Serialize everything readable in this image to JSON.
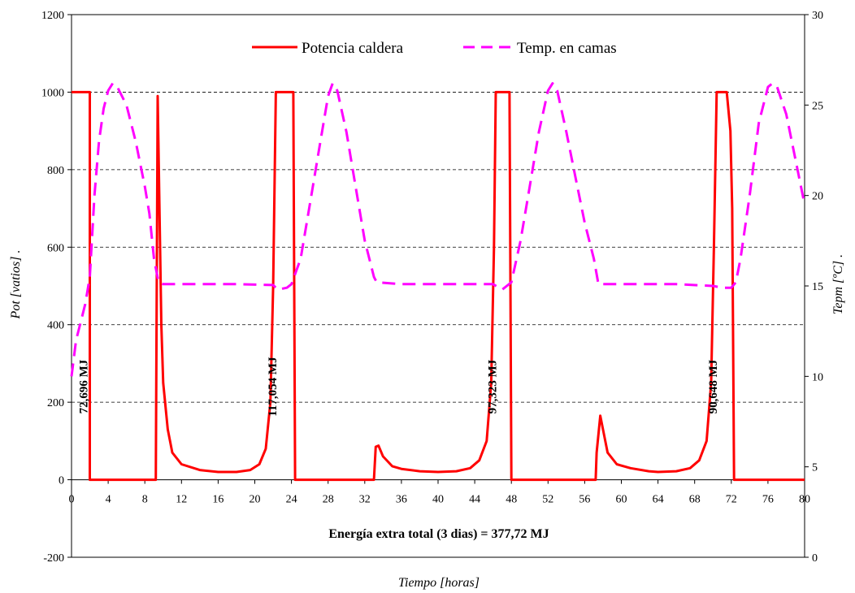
{
  "chart_data": {
    "type": "line",
    "xlabel": "Tiempo [horas]",
    "ylabel": "Pot [vatios]  .",
    "y2label": "Tepm [ºC]  .",
    "xlim": [
      0,
      80
    ],
    "ylim": [
      -200,
      1200
    ],
    "y2lim": [
      0,
      30
    ],
    "x_ticks": [
      0,
      4,
      8,
      12,
      16,
      20,
      24,
      28,
      32,
      36,
      40,
      44,
      48,
      52,
      56,
      60,
      64,
      68,
      72,
      76,
      80
    ],
    "y_ticks": [
      -200,
      0,
      200,
      400,
      600,
      800,
      1000,
      1200
    ],
    "y2_ticks": [
      0,
      5,
      10,
      15,
      20,
      25,
      30
    ],
    "grid": "horizontal dashed at 200, 400, 600, 800, 1000",
    "legend_position": "top-center",
    "series": [
      {
        "name": "Potencia caldera",
        "axis": "left",
        "color": "#ff0000",
        "style": "solid",
        "points": [
          [
            0,
            1000
          ],
          [
            2,
            1000
          ],
          [
            2,
            0
          ],
          [
            9.2,
            0
          ],
          [
            9.4,
            990
          ],
          [
            9.6,
            700
          ],
          [
            9.8,
            400
          ],
          [
            10,
            250
          ],
          [
            10.5,
            130
          ],
          [
            11,
            70
          ],
          [
            12,
            40
          ],
          [
            14,
            25
          ],
          [
            16,
            20
          ],
          [
            18,
            20
          ],
          [
            19.5,
            25
          ],
          [
            20.5,
            40
          ],
          [
            21.2,
            80
          ],
          [
            21.7,
            200
          ],
          [
            22,
            500
          ],
          [
            22.3,
            1000
          ],
          [
            24.2,
            1000
          ],
          [
            24.4,
            0
          ],
          [
            33,
            0
          ],
          [
            33.2,
            85
          ],
          [
            33.5,
            88
          ],
          [
            34,
            60
          ],
          [
            35,
            35
          ],
          [
            36,
            28
          ],
          [
            38,
            22
          ],
          [
            40,
            20
          ],
          [
            42,
            22
          ],
          [
            43.5,
            30
          ],
          [
            44.5,
            50
          ],
          [
            45.3,
            100
          ],
          [
            45.8,
            250
          ],
          [
            46.1,
            600
          ],
          [
            46.3,
            1000
          ],
          [
            47.8,
            1000
          ],
          [
            48,
            0
          ],
          [
            57.2,
            0
          ],
          [
            57.3,
            70
          ],
          [
            57.7,
            165
          ],
          [
            58,
            130
          ],
          [
            58.5,
            70
          ],
          [
            59.5,
            40
          ],
          [
            61,
            30
          ],
          [
            63,
            22
          ],
          [
            64,
            20
          ],
          [
            66,
            22
          ],
          [
            67.5,
            30
          ],
          [
            68.5,
            50
          ],
          [
            69.3,
            100
          ],
          [
            69.8,
            250
          ],
          [
            70.1,
            600
          ],
          [
            70.4,
            1000
          ],
          [
            71.5,
            1000
          ],
          [
            71.9,
            900
          ],
          [
            72.1,
            700
          ],
          [
            72.3,
            0
          ],
          [
            80,
            0
          ]
        ]
      },
      {
        "name": "Temp. en camas",
        "axis": "right",
        "color": "#ff00ff",
        "style": "dashed",
        "points": [
          [
            0,
            10
          ],
          [
            0.5,
            12
          ],
          [
            1,
            13
          ],
          [
            1.5,
            14
          ],
          [
            2,
            15.5
          ],
          [
            2.5,
            20
          ],
          [
            3,
            23
          ],
          [
            3.5,
            24.8
          ],
          [
            4,
            25.8
          ],
          [
            4.5,
            26.2
          ],
          [
            5,
            26
          ],
          [
            6,
            25
          ],
          [
            7,
            23
          ],
          [
            8,
            20.5
          ],
          [
            8.5,
            19
          ],
          [
            9,
            16.5
          ],
          [
            9.5,
            15.2
          ],
          [
            10,
            15.1
          ],
          [
            14,
            15.1
          ],
          [
            18,
            15.1
          ],
          [
            22,
            15.05
          ],
          [
            22.5,
            14.8
          ],
          [
            23.5,
            14.9
          ],
          [
            24,
            15.1
          ],
          [
            25,
            16.5
          ],
          [
            26,
            19.5
          ],
          [
            27,
            22.5
          ],
          [
            28,
            25.5
          ],
          [
            28.5,
            26.2
          ],
          [
            29,
            25.8
          ],
          [
            30,
            23.5
          ],
          [
            31,
            20.5
          ],
          [
            32,
            17.5
          ],
          [
            33,
            15.5
          ],
          [
            33.3,
            15.2
          ],
          [
            36,
            15.1
          ],
          [
            40,
            15.1
          ],
          [
            44,
            15.1
          ],
          [
            46,
            15.1
          ],
          [
            47,
            14.8
          ],
          [
            48,
            15.2
          ],
          [
            49,
            17.5
          ],
          [
            50,
            20.5
          ],
          [
            51,
            23.5
          ],
          [
            52,
            25.8
          ],
          [
            52.5,
            26.2
          ],
          [
            53,
            25.8
          ],
          [
            54,
            23.5
          ],
          [
            55,
            21
          ],
          [
            56,
            18.5
          ],
          [
            57,
            16.5
          ],
          [
            57.5,
            15.1
          ],
          [
            62,
            15.1
          ],
          [
            66,
            15.1
          ],
          [
            70,
            15
          ],
          [
            71,
            14.9
          ],
          [
            72,
            14.9
          ],
          [
            72.5,
            15.2
          ],
          [
            73,
            16.5
          ],
          [
            74,
            20
          ],
          [
            75,
            24
          ],
          [
            76,
            26
          ],
          [
            76.5,
            26.2
          ],
          [
            77,
            26
          ],
          [
            78,
            24.5
          ],
          [
            79,
            22
          ],
          [
            80,
            19.5
          ]
        ]
      }
    ],
    "annotations": [
      {
        "text": "72,696 MJ",
        "x": 1.2,
        "y": 240
      },
      {
        "text": "117,054  MJ",
        "x": 21.8,
        "y": 240
      },
      {
        "text": "97,323  MJ",
        "x": 45.8,
        "y": 240
      },
      {
        "text": "90,648  MJ",
        "x": 69.9,
        "y": 240
      }
    ],
    "total_text": "Energía extra total (3 dias) = 377,72 MJ"
  }
}
